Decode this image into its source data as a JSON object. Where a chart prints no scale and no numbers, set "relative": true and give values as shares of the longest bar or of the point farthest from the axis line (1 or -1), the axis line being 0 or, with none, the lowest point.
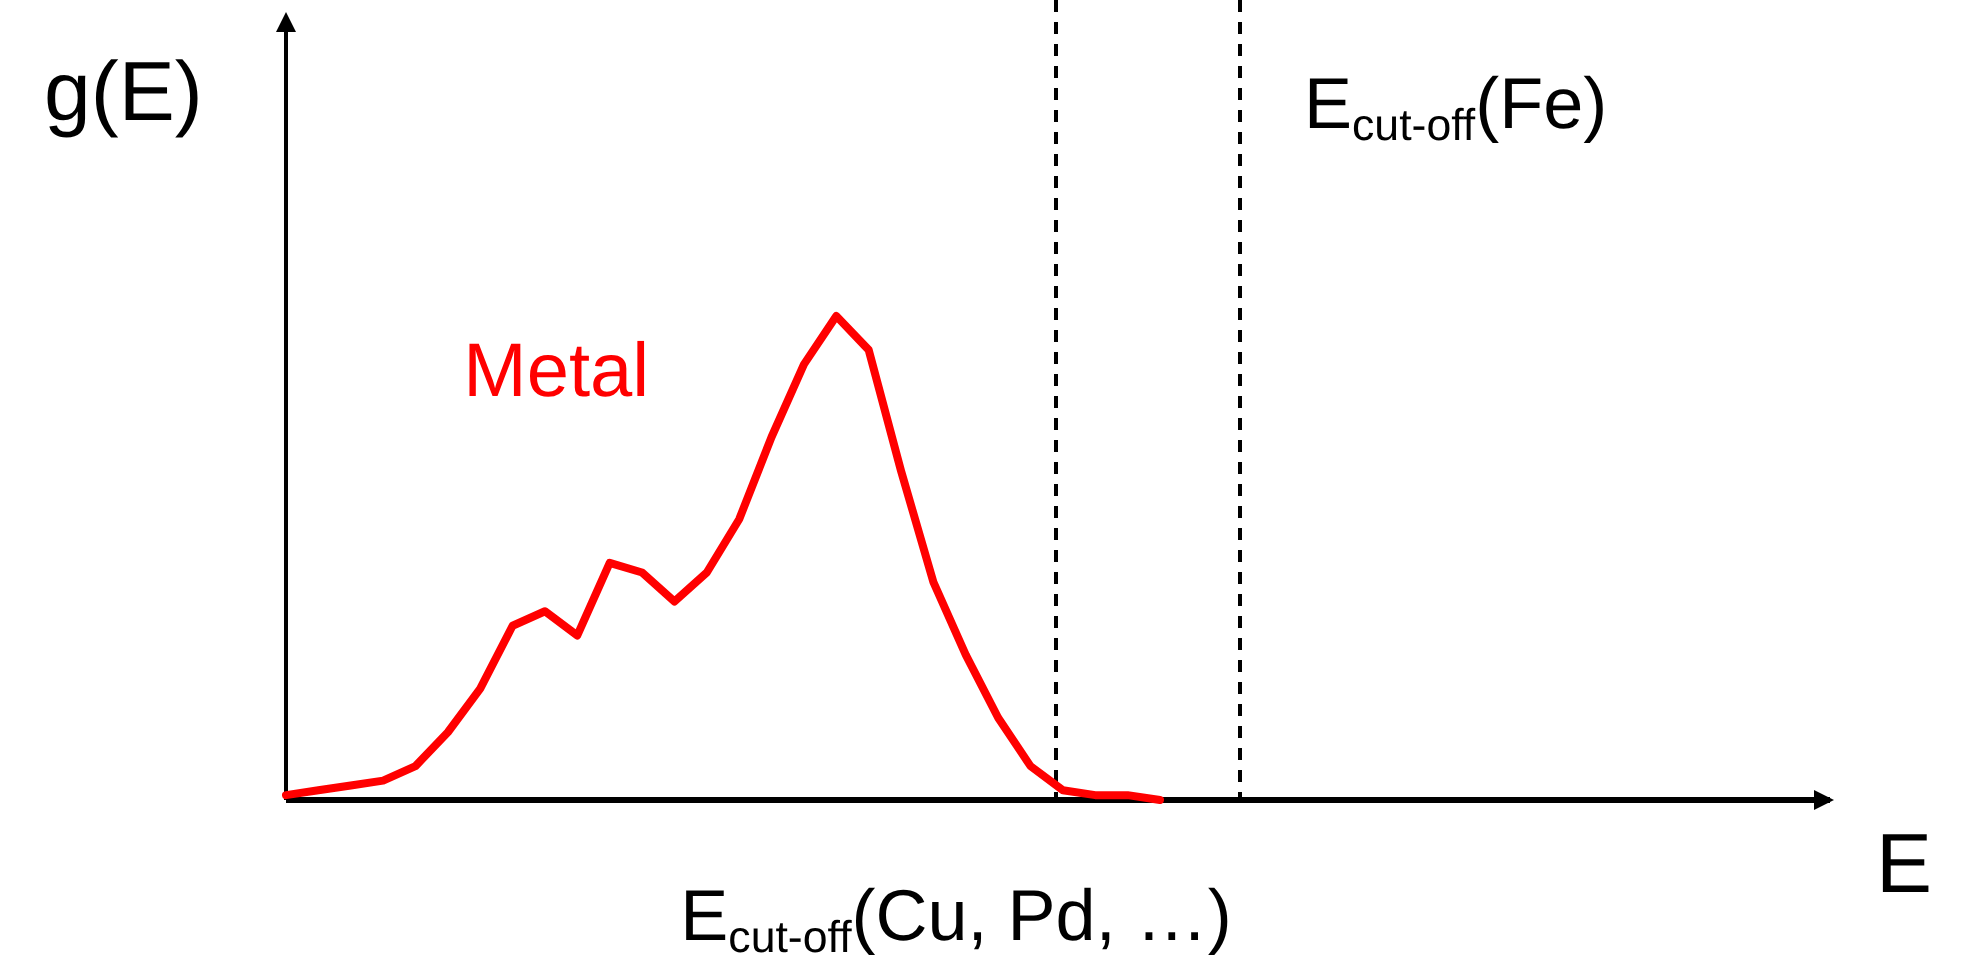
{
  "chart_data": {
    "type": "line",
    "relative": true,
    "ylabel": "g(E)",
    "line_style": "solid",
    "categories": [
      null,
      null,
      null,
      null,
      null,
      null,
      null,
      null,
      null,
      null,
      null,
      null,
      null,
      null,
      null,
      null,
      null,
      null,
      null,
      null,
      null,
      null,
      null,
      null,
      null,
      null,
      null,
      null
    ],
    "series": [
      {
        "name": "Metal",
        "color": "#ff0000",
        "values": [
          0.01,
          0.02,
          0.03,
          0.04,
          0.07,
          0.14,
          0.23,
          0.36,
          0.39,
          0.34,
          0.49,
          0.47,
          0.41,
          0.47,
          0.58,
          0.75,
          0.9,
          1,
          0.93,
          0.68,
          0.45,
          0.3,
          0.17,
          0.07,
          0.02,
          0.01,
          0.01,
          0
        ]
      }
    ],
    "annotations": [
      "E$_{cut-off}$(Cu, Pd, …)",
      "E$_{cut-off}$(Fe)",
      "E"
    ]
  }
}
